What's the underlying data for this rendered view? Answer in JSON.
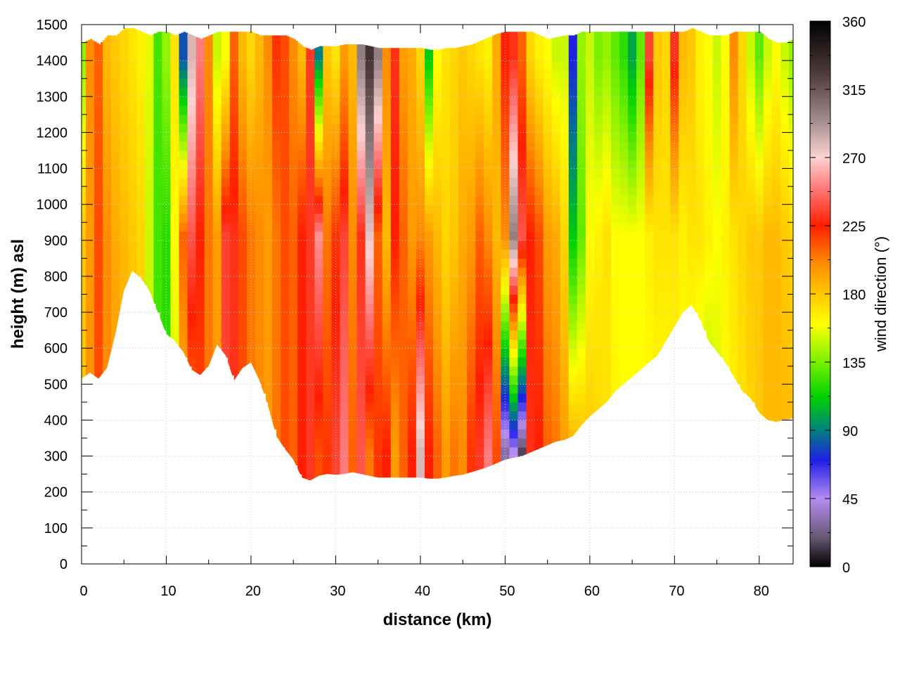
{
  "chart_data": {
    "type": "heatmap",
    "title": "",
    "xlabel": "distance (km)",
    "ylabel": "height (m) asl",
    "xlim": [
      0,
      84
    ],
    "ylim": [
      0,
      1500
    ],
    "xticks": [
      0,
      10,
      20,
      30,
      40,
      50,
      60,
      70,
      80
    ],
    "yticks": [
      0,
      100,
      200,
      300,
      400,
      500,
      600,
      700,
      800,
      900,
      1000,
      1100,
      1200,
      1300,
      1400,
      1500
    ],
    "grid": true,
    "colorbar": {
      "label": "wind direction (°)",
      "range": [
        0,
        360
      ],
      "ticks": [
        0,
        45,
        90,
        135,
        180,
        225,
        270,
        315,
        360
      ],
      "colormap": [
        {
          "v": 0,
          "c": "#000000"
        },
        {
          "v": 20,
          "c": "#6a5a78"
        },
        {
          "v": 45,
          "c": "#b48cf0"
        },
        {
          "v": 70,
          "c": "#1f1fe6"
        },
        {
          "v": 90,
          "c": "#008080"
        },
        {
          "v": 112,
          "c": "#00d200"
        },
        {
          "v": 135,
          "c": "#78f000"
        },
        {
          "v": 160,
          "c": "#ffff00"
        },
        {
          "v": 180,
          "c": "#ffc800"
        },
        {
          "v": 200,
          "c": "#ff8c00"
        },
        {
          "v": 225,
          "c": "#ff1e00"
        },
        {
          "v": 250,
          "c": "#ff7a7a"
        },
        {
          "v": 270,
          "c": "#ffd2d2"
        },
        {
          "v": 295,
          "c": "#a08c8c"
        },
        {
          "v": 325,
          "c": "#503c3c"
        },
        {
          "v": 360,
          "c": "#000000"
        }
      ]
    },
    "terrain": {
      "distance_km": [
        0,
        1,
        2,
        3,
        4,
        5,
        6,
        7,
        8,
        9,
        10,
        11,
        12,
        13,
        14,
        15,
        16,
        17,
        18,
        19,
        20,
        21,
        22,
        23,
        24,
        25,
        26,
        27,
        28,
        29,
        30,
        31,
        32,
        33,
        34,
        35,
        36,
        37,
        38,
        39,
        40,
        41,
        42,
        43,
        44,
        45,
        46,
        47,
        48,
        49,
        50,
        51,
        52,
        53,
        54,
        55,
        56,
        57,
        58,
        59,
        60,
        61,
        62,
        63,
        64,
        65,
        66,
        67,
        68,
        69,
        70,
        71,
        72,
        73,
        74,
        75,
        76,
        77,
        78,
        79,
        80,
        81,
        82,
        83,
        84
      ],
      "height_m": [
        515,
        532,
        515,
        545,
        640,
        760,
        815,
        795,
        760,
        700,
        640,
        620,
        590,
        540,
        525,
        550,
        610,
        580,
        510,
        545,
        560,
        510,
        440,
        355,
        320,
        290,
        240,
        232,
        245,
        250,
        248,
        250,
        255,
        250,
        245,
        240,
        240,
        240,
        240,
        240,
        240,
        237,
        237,
        240,
        245,
        248,
        255,
        262,
        270,
        280,
        290,
        295,
        300,
        310,
        320,
        330,
        340,
        345,
        355,
        385,
        410,
        430,
        450,
        480,
        500,
        520,
        540,
        560,
        580,
        620,
        660,
        700,
        720,
        680,
        620,
        590,
        560,
        520,
        480,
        460,
        420,
        400,
        395,
        400,
        405
      ]
    },
    "top_height_m": [
      1450,
      1460,
      1445,
      1470,
      1470,
      1490,
      1490,
      1480,
      1470,
      1480,
      1480,
      1470,
      1480,
      1470,
      1460,
      1470,
      1480,
      1480,
      1480,
      1480,
      1480,
      1470,
      1470,
      1470,
      1470,
      1460,
      1440,
      1430,
      1440,
      1440,
      1440,
      1445,
      1445,
      1445,
      1440,
      1435,
      1435,
      1435,
      1435,
      1435,
      1435,
      1430,
      1430,
      1435,
      1435,
      1440,
      1445,
      1455,
      1465,
      1475,
      1480,
      1480,
      1480,
      1480,
      1470,
      1460,
      1465,
      1470,
      1470,
      1480,
      1480,
      1480,
      1480,
      1480,
      1480,
      1480,
      1480,
      1480,
      1480,
      1480,
      1480,
      1480,
      1490,
      1480,
      1470,
      1470,
      1470,
      1480,
      1480,
      1480,
      1480,
      1460,
      1450,
      1450,
      1460
    ],
    "wind_direction_deg": {
      "distance_km": [
        0,
        1,
        2,
        3,
        4,
        5,
        6,
        7,
        8,
        9,
        10,
        11,
        12,
        13,
        14,
        15,
        16,
        17,
        18,
        19,
        20,
        21,
        22,
        23,
        24,
        25,
        26,
        27,
        28,
        29,
        30,
        31,
        32,
        33,
        34,
        35,
        36,
        37,
        38,
        39,
        40,
        41,
        42,
        43,
        44,
        45,
        46,
        47,
        48,
        49,
        50,
        51,
        52,
        53,
        54,
        55,
        56,
        57,
        58,
        59,
        60,
        61,
        62,
        63,
        64,
        65,
        66,
        67,
        68,
        69,
        70,
        71,
        72,
        73,
        74,
        75,
        76,
        77,
        78,
        79,
        80,
        81,
        82,
        83,
        84
      ],
      "level_heights_m": [
        300,
        900,
        1400
      ],
      "values_low": [
        180,
        200,
        215,
        200,
        195,
        190,
        185,
        180,
        150,
        125,
        120,
        150,
        185,
        200,
        215,
        205,
        195,
        235,
        230,
        215,
        205,
        200,
        195,
        205,
        215,
        210,
        225,
        232,
        215,
        220,
        235,
        250,
        210,
        240,
        205,
        220,
        225,
        195,
        210,
        225,
        280,
        225,
        210,
        195,
        205,
        200,
        220,
        232,
        250,
        215,
        30,
        45,
        15,
        230,
        225,
        210,
        205,
        195,
        190,
        185,
        180,
        175,
        170,
        165,
        160,
        160,
        160,
        160,
        160,
        160,
        160,
        160,
        150,
        140,
        140,
        150,
        160,
        165,
        170,
        175,
        180,
        185,
        185,
        185,
        185
      ],
      "values_mid": [
        180,
        195,
        215,
        200,
        190,
        185,
        180,
        175,
        150,
        125,
        120,
        160,
        210,
        240,
        225,
        205,
        195,
        235,
        230,
        215,
        205,
        200,
        195,
        205,
        215,
        210,
        225,
        232,
        255,
        205,
        220,
        235,
        200,
        230,
        275,
        210,
        185,
        225,
        210,
        195,
        200,
        195,
        185,
        175,
        180,
        190,
        195,
        210,
        200,
        185,
        200,
        300,
        240,
        225,
        215,
        195,
        190,
        175,
        110,
        130,
        160,
        165,
        170,
        160,
        160,
        160,
        160,
        165,
        170,
        170,
        170,
        165,
        170,
        170,
        165,
        160,
        165,
        170,
        175,
        180,
        180,
        185,
        185,
        180,
        175
      ],
      "values_high": [
        140,
        200,
        210,
        185,
        180,
        175,
        170,
        165,
        155,
        125,
        140,
        170,
        80,
        280,
        250,
        200,
        150,
        160,
        210,
        185,
        175,
        185,
        200,
        220,
        215,
        200,
        185,
        232,
        90,
        180,
        170,
        195,
        185,
        300,
        330,
        300,
        200,
        230,
        195,
        190,
        175,
        110,
        160,
        170,
        175,
        180,
        175,
        170,
        165,
        190,
        225,
        230,
        210,
        175,
        165,
        160,
        150,
        150,
        70,
        140,
        150,
        135,
        140,
        130,
        120,
        100,
        130,
        235,
        180,
        175,
        230,
        185,
        180,
        165,
        160,
        150,
        160,
        200,
        175,
        150,
        130,
        150,
        160,
        150,
        140
      ]
    }
  }
}
